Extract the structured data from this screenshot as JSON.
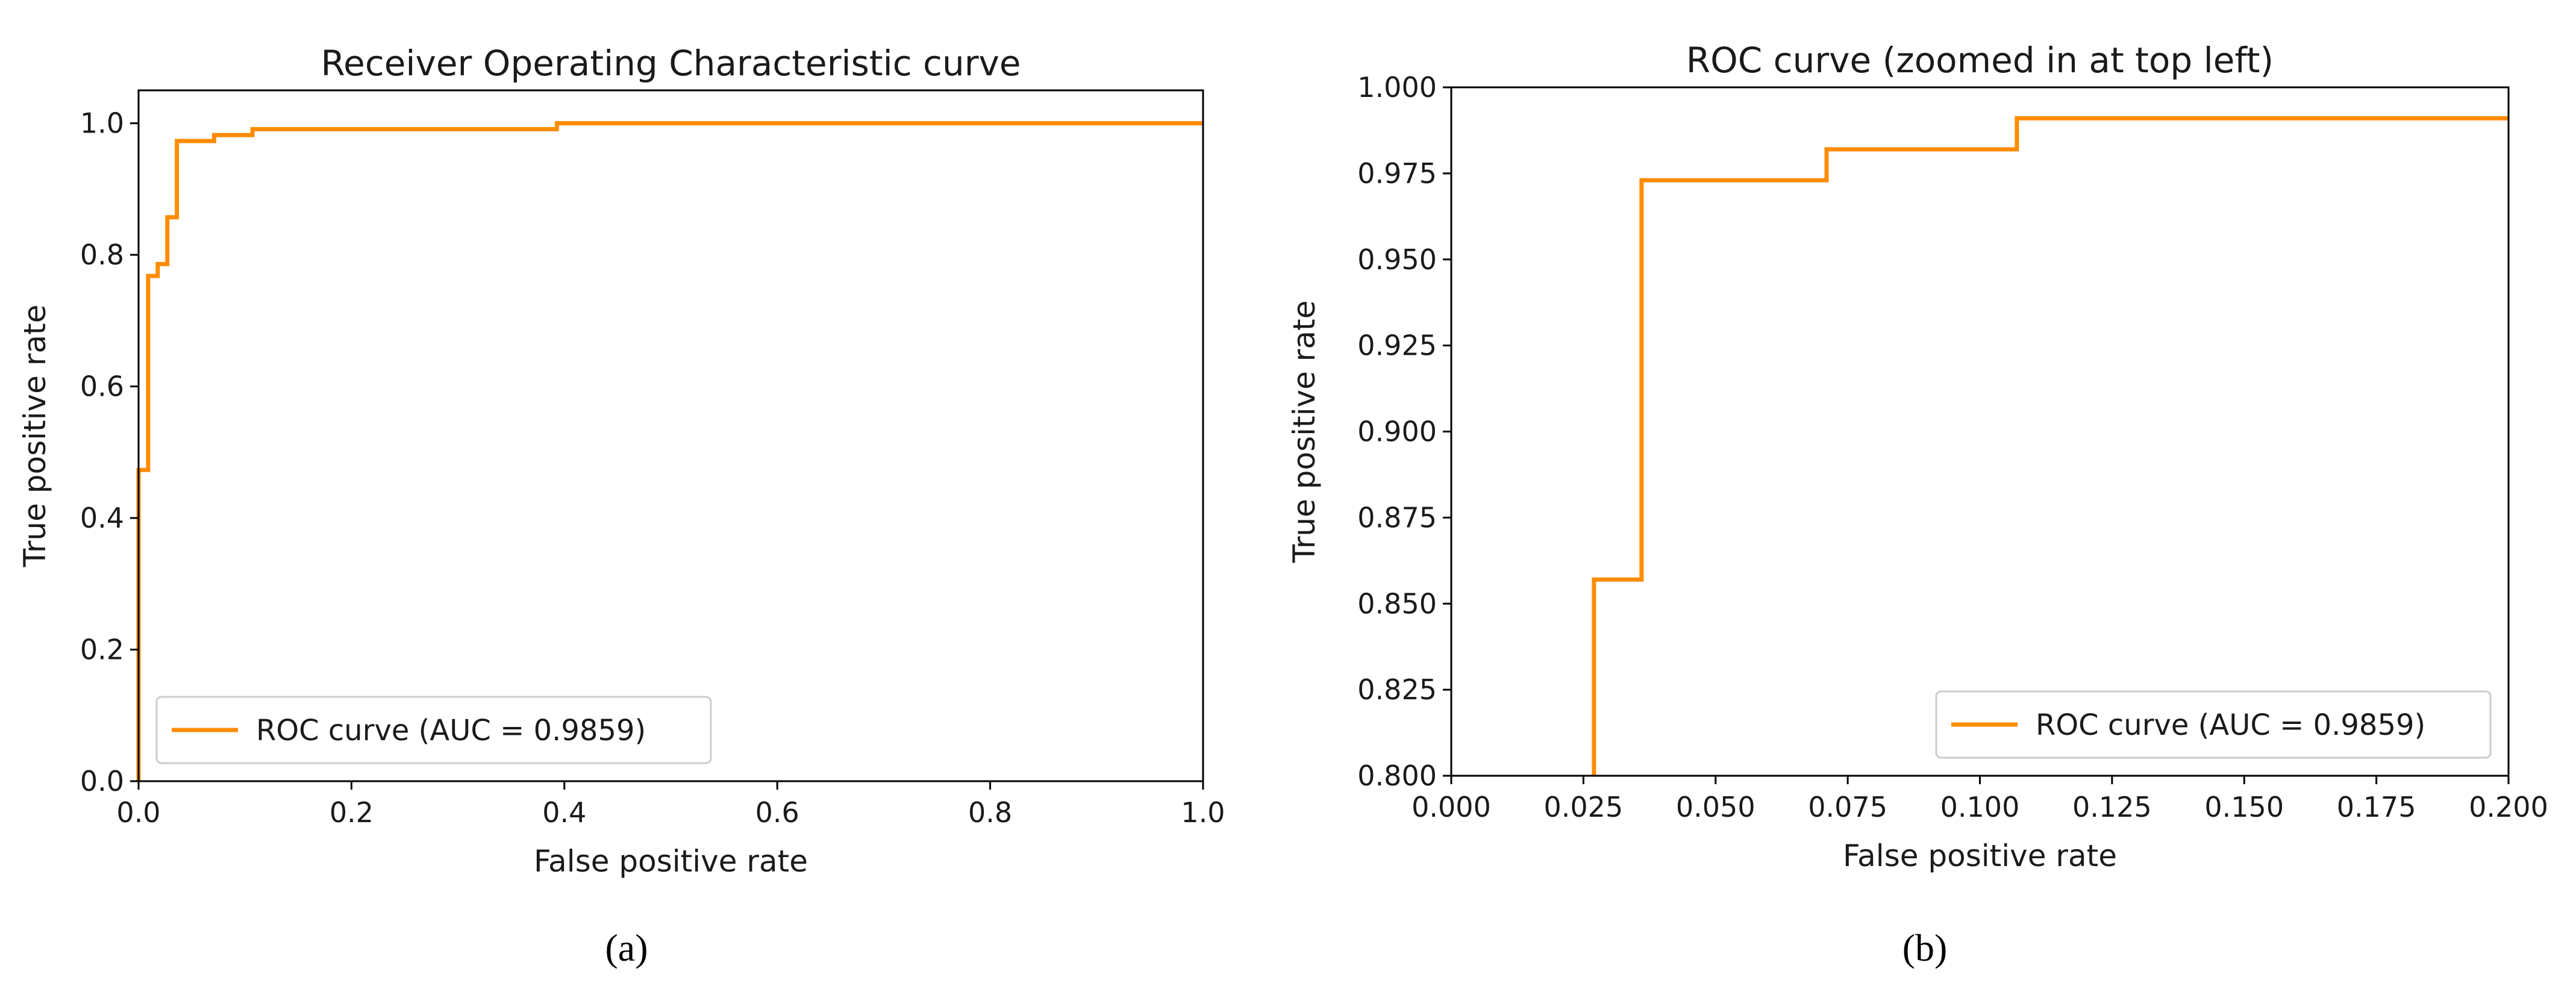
{
  "colors": {
    "curve": "#ff8c00",
    "axis": "#000000",
    "legend_border": "#cccccc"
  },
  "chart_data": [
    {
      "type": "line",
      "panel_label": "(a)",
      "title": "Receiver Operating Characteristic curve",
      "xlabel": "False positive rate",
      "ylabel": "True positive rate",
      "xlim": [
        0.0,
        1.0
      ],
      "ylim": [
        0.0,
        1.05
      ],
      "xticks": [
        0.0,
        0.2,
        0.4,
        0.6,
        0.8,
        1.0
      ],
      "xtick_labels": [
        "0.0",
        "0.2",
        "0.4",
        "0.6",
        "0.8",
        "1.0"
      ],
      "yticks": [
        0.0,
        0.2,
        0.4,
        0.6,
        0.8,
        1.0
      ],
      "ytick_labels": [
        "0.0",
        "0.2",
        "0.4",
        "0.6",
        "0.8",
        "1.0"
      ],
      "legend": {
        "label": "ROC curve (AUC = 0.9859)",
        "position": "lower-left"
      },
      "grid": false,
      "series": [
        {
          "name": "ROC curve (AUC = 0.9859)",
          "x": [
            0.0,
            0.0,
            0.009,
            0.009,
            0.018,
            0.018,
            0.027,
            0.027,
            0.036,
            0.036,
            0.071,
            0.071,
            0.107,
            0.107,
            0.393,
            0.393,
            1.0
          ],
          "y": [
            0.0,
            0.473,
            0.473,
            0.768,
            0.768,
            0.786,
            0.786,
            0.857,
            0.857,
            0.973,
            0.973,
            0.982,
            0.982,
            0.991,
            0.991,
            1.0,
            1.0
          ]
        }
      ]
    },
    {
      "type": "line",
      "panel_label": "(b)",
      "title": "ROC curve (zoomed in at top left)",
      "xlabel": "False positive rate",
      "ylabel": "True positive rate",
      "xlim": [
        0.0,
        0.2
      ],
      "ylim": [
        0.8,
        1.0
      ],
      "xticks": [
        0.0,
        0.025,
        0.05,
        0.075,
        0.1,
        0.125,
        0.15,
        0.175,
        0.2
      ],
      "xtick_labels": [
        "0.000",
        "0.025",
        "0.050",
        "0.075",
        "0.100",
        "0.125",
        "0.150",
        "0.175",
        "0.200"
      ],
      "yticks": [
        0.8,
        0.825,
        0.85,
        0.875,
        0.9,
        0.925,
        0.95,
        0.975,
        1.0
      ],
      "ytick_labels": [
        "0.800",
        "0.825",
        "0.850",
        "0.875",
        "0.900",
        "0.925",
        "0.950",
        "0.975",
        "1.000"
      ],
      "legend": {
        "label": "ROC curve (AUC = 0.9859)",
        "position": "lower-right"
      },
      "grid": false,
      "series": [
        {
          "name": "ROC curve (AUC = 0.9859)",
          "x": [
            0.027,
            0.027,
            0.036,
            0.036,
            0.071,
            0.071,
            0.107,
            0.107,
            0.2
          ],
          "y": [
            0.8,
            0.857,
            0.857,
            0.973,
            0.973,
            0.982,
            0.982,
            0.991,
            0.991
          ]
        }
      ]
    }
  ]
}
